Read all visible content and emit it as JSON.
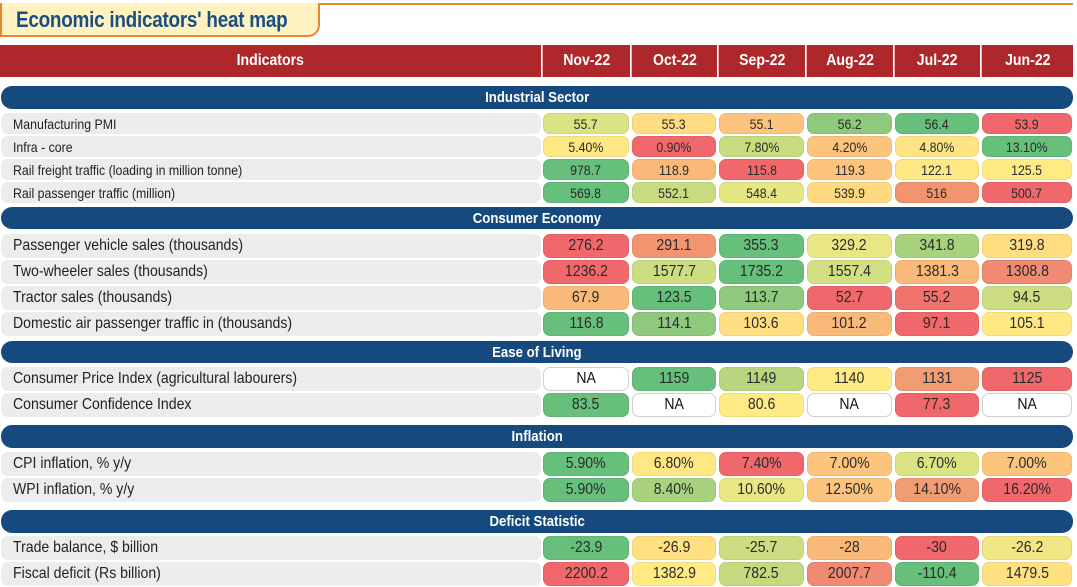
{
  "title": "Economic indicators' heat map",
  "header": {
    "indicators": "Indicators",
    "months": [
      "Nov-22",
      "Oct-22",
      "Sep-22",
      "Aug-22",
      "Jul-22",
      "Jun-22"
    ]
  },
  "colors": {
    "header_red": "#AE272B",
    "section_blue": "#164A7E",
    "title_orange": "#E8872F",
    "dark_green": "#63BE7B",
    "mid_green": "#A9D27F",
    "light_green": "#CCDD82",
    "yellow": "#FFEB84",
    "light_orange": "#FDD17F",
    "orange": "#F8AC78",
    "salmon": "#F19371",
    "red": "#F8696B"
  },
  "sections": [
    {
      "name": "Industrial Sector",
      "rows": [
        {
          "label": "Manufacturing PMI",
          "values": [
            "55.7",
            "55.3",
            "55.1",
            "56.2",
            "56.4",
            "53.9"
          ],
          "colors": [
            "#DCE382",
            "#FFDB81",
            "#FDC47D",
            "#8FC97E",
            "#67BF7C",
            "#F0686B"
          ]
        },
        {
          "label": "Infra - core",
          "values": [
            "5.40%",
            "0.90%",
            "7.80%",
            "4.20%",
            "4.80%",
            "13.10%"
          ],
          "colors": [
            "#FDE885",
            "#F0686B",
            "#C9DB80",
            "#FDC47D",
            "#FFE485",
            "#67BF7C"
          ]
        },
        {
          "label": "Rail freight traffic  (loading in million tonne)",
          "values": [
            "978.7",
            "118.9",
            "115.8",
            "119.3",
            "122.1",
            "125.5"
          ],
          "colors": [
            "#67BF7C",
            "#F9B978",
            "#F0686B",
            "#FDC47D",
            "#FFE884",
            "#FFEA84"
          ]
        },
        {
          "label": "Rail passenger traffic  (million)",
          "values": [
            "569.8",
            "552.1",
            "548.4",
            "539.9",
            "516",
            "500.7"
          ],
          "colors": [
            "#67BF7C",
            "#C9DB80",
            "#E5E784",
            "#FFDA81",
            "#F29470",
            "#F0686B"
          ]
        }
      ]
    },
    {
      "name": "Consumer Economy",
      "rows": [
        {
          "label": "Passenger vehicle sales (thousands)",
          "values": [
            "276.2",
            "291.1",
            "355.3",
            "329.2",
            "341.8",
            "319.8"
          ],
          "colors": [
            "#F0686B",
            "#F29470",
            "#67BF7C",
            "#E8E784",
            "#A9D27F",
            "#FFDE82"
          ]
        },
        {
          "label": "Two-wheeler sales (thousands)",
          "values": [
            "1236.2",
            "1577.7",
            "1735.2",
            "1557.4",
            "1381.3",
            "1308.8"
          ],
          "colors": [
            "#F0686B",
            "#CCDD82",
            "#67BF7C",
            "#D2DF82",
            "#F9B978",
            "#F08A72"
          ]
        },
        {
          "label": "Tractor sales (thousands)",
          "values": [
            "67.9",
            "123.5",
            "113.7",
            "52.7",
            "55.2",
            "94.5"
          ],
          "colors": [
            "#F9B978",
            "#67BF7C",
            "#8FC97E",
            "#F0686B",
            "#F0736D",
            "#CCDD82"
          ]
        },
        {
          "label": "Domestic air passenger traffic in (thousands)",
          "values": [
            "116.8",
            "114.1",
            "103.6",
            "101.2",
            "97.1",
            "105.1"
          ],
          "colors": [
            "#67BF7C",
            "#8FC97E",
            "#FFDE82",
            "#F9B978",
            "#F0686B",
            "#FFE884"
          ]
        }
      ]
    },
    {
      "name": "Ease of Living",
      "rows": [
        {
          "label": "Consumer Price Index (agricultural labourers)",
          "values": [
            "NA",
            "1159",
            "1149",
            "1140",
            "1131",
            "1125"
          ],
          "colors": [
            "",
            "#67BF7C",
            "#B8D580",
            "#FFEA84",
            "#F29C73",
            "#F0686B"
          ]
        },
        {
          "label": "Consumer Confidence Index",
          "values": [
            "83.5",
            "NA",
            "80.6",
            "NA",
            "77.3",
            "NA"
          ],
          "colors": [
            "#67BF7C",
            "",
            "#FFEA84",
            "",
            "#F0686B",
            ""
          ]
        }
      ]
    },
    {
      "name": "Inflation",
      "rows": [
        {
          "label": "CPI inflation, % y/y",
          "values": [
            "5.90%",
            "6.80%",
            "7.40%",
            "7.00%",
            "6.70%",
            "7.00%"
          ],
          "colors": [
            "#67BF7C",
            "#FFE884",
            "#F0686B",
            "#FDC47D",
            "#DCE382",
            "#FDC47D"
          ]
        },
        {
          "label": "WPI inflation, % y/y",
          "values": [
            "5.90%",
            "8.40%",
            "10.60%",
            "12.50%",
            "14.10%",
            "16.20%"
          ],
          "colors": [
            "#67BF7C",
            "#A9D27F",
            "#E8E784",
            "#FDC47D",
            "#F29C73",
            "#F0686B"
          ]
        }
      ]
    },
    {
      "name": "Deficit Statistic",
      "rows": [
        {
          "label": "Trade balance, $ billion",
          "values": [
            "-23.9",
            "-26.9",
            "-25.7",
            "-28",
            "-30",
            "-26.2"
          ],
          "colors": [
            "#67BF7C",
            "#FFE182",
            "#CCDD82",
            "#F9B978",
            "#F0686B",
            "#F1E784"
          ]
        },
        {
          "label": "Fiscal deficit (Rs billion)",
          "values": [
            "2200.2",
            "1382.9",
            "782.5",
            "2007.7",
            "-110.4",
            "1479.5"
          ],
          "colors": [
            "#F0686B",
            "#FFEA84",
            "#C4D980",
            "#F08A72",
            "#67BF7C",
            "#FFE182"
          ]
        }
      ]
    }
  ],
  "chart_data": {
    "type": "heatmap",
    "title": "Economic indicators' heat map",
    "columns": [
      "Nov-22",
      "Oct-22",
      "Sep-22",
      "Aug-22",
      "Jul-22",
      "Jun-22"
    ],
    "row_header": "Indicators",
    "groups": [
      "Industrial Sector",
      "Consumer Economy",
      "Ease of Living",
      "Inflation",
      "Deficit Statistic"
    ],
    "color_scale": "green (best) - yellow - red (worst), per row"
  }
}
